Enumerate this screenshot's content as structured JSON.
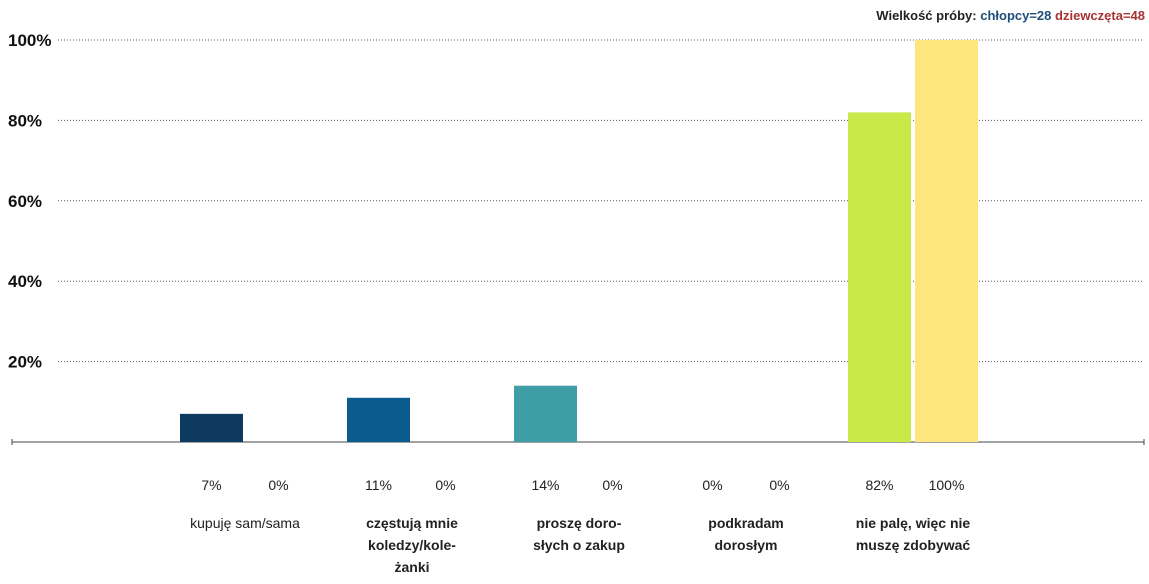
{
  "header": {
    "sample_label": "Wielkość próby:",
    "boys_label": "chłopcy=28",
    "girls_label": "dziewczęta=48"
  },
  "chart_data": {
    "type": "bar",
    "ylim": [
      0,
      100
    ],
    "yticks": [
      "20%",
      "40%",
      "60%",
      "80%",
      "100%"
    ],
    "grid": true,
    "categories": [
      {
        "lines": [
          "kupuję sam/sama"
        ],
        "bold": false,
        "values": [
          7,
          0
        ],
        "value_labels": [
          "7%",
          "0%"
        ],
        "colors": [
          "#0f3a5f",
          "#ffffff"
        ]
      },
      {
        "lines": [
          "częstują mnie",
          "koledzy/kole-",
          "żanki"
        ],
        "bold": true,
        "values": [
          11,
          0
        ],
        "value_labels": [
          "11%",
          "0%"
        ],
        "colors": [
          "#0c5b8f",
          "#ffffff"
        ]
      },
      {
        "lines": [
          "proszę doro-",
          "słych o zakup"
        ],
        "bold": true,
        "values": [
          14,
          0
        ],
        "value_labels": [
          "14%",
          "0%"
        ],
        "colors": [
          "#3f9ea5",
          "#ffffff"
        ]
      },
      {
        "lines": [
          "podkradam",
          "dorosłym"
        ],
        "bold": true,
        "values": [
          0,
          0
        ],
        "value_labels": [
          "0%",
          "0%"
        ],
        "colors": [
          "#2f8f6f",
          "#ffffff"
        ]
      },
      {
        "lines": [
          "nie palę, więc nie",
          "muszę zdobywać"
        ],
        "bold": true,
        "values": [
          82,
          100
        ],
        "value_labels": [
          "82%",
          "100%"
        ],
        "colors": [
          "#c9e84a",
          "#fde77c"
        ]
      }
    ]
  }
}
